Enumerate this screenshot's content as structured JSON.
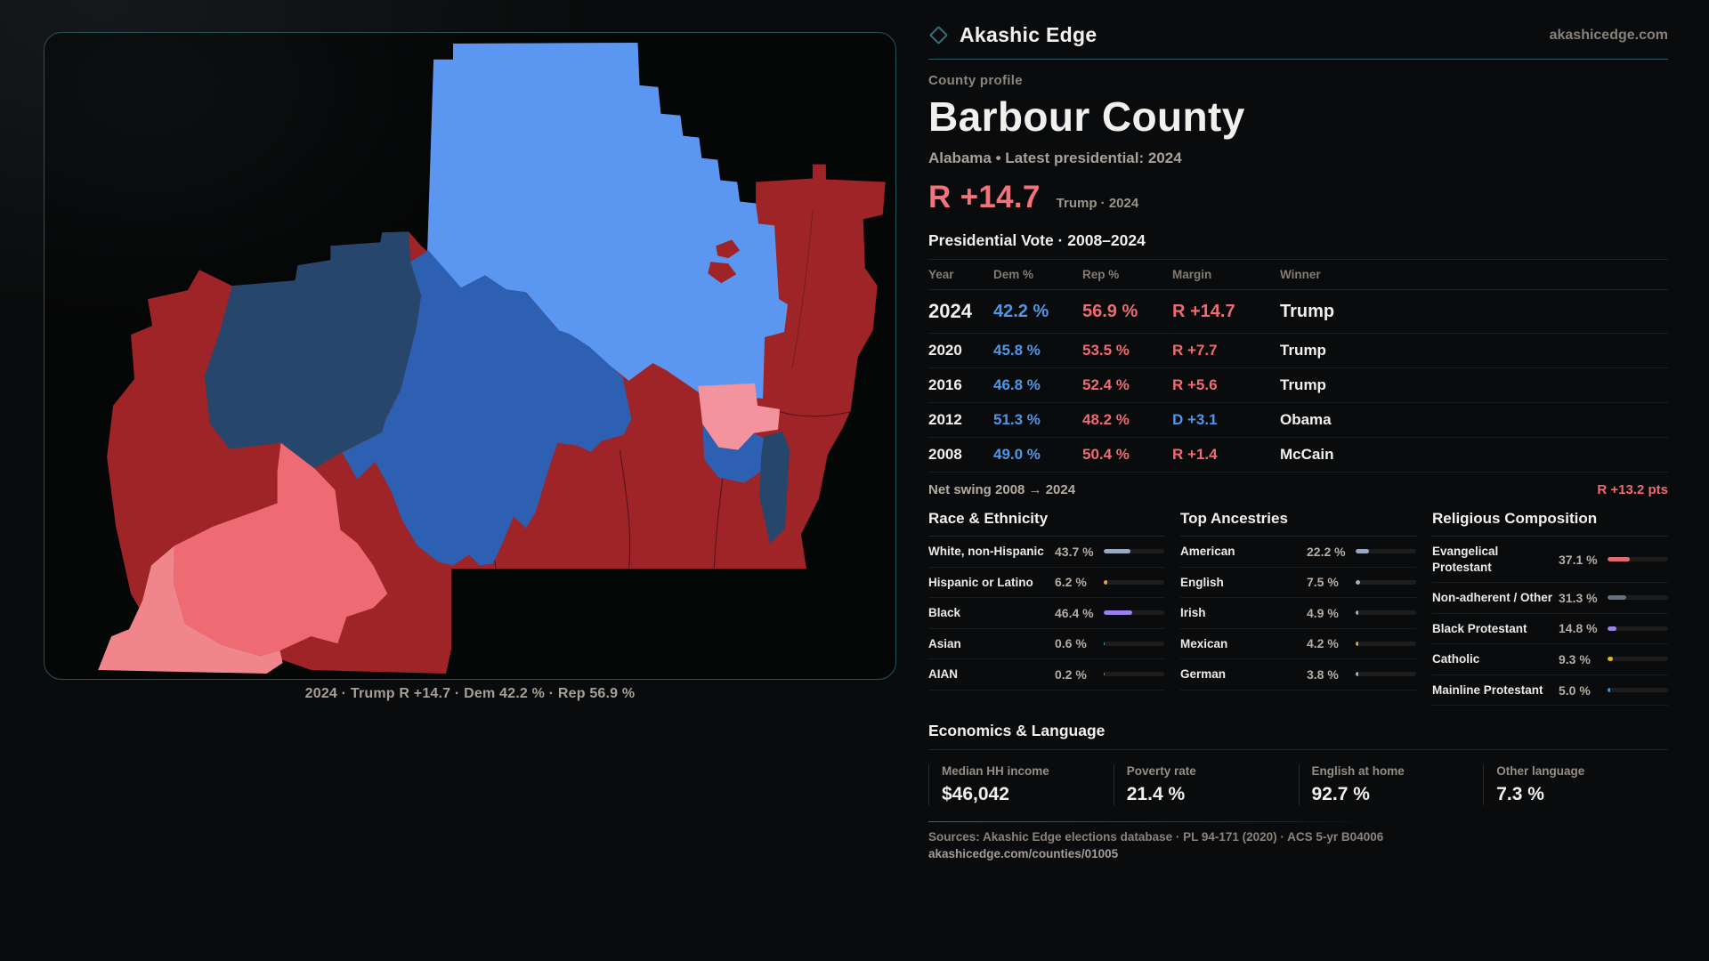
{
  "brand": {
    "name": "Akashic Edge",
    "domain": "akashicedge.com"
  },
  "header": {
    "eyebrow": "County profile",
    "title": "Barbour County",
    "subtitle": "Alabama • Latest presidential: 2024",
    "headline_margin": "R +14.7",
    "headline_note": "Trump · 2024"
  },
  "colors": {
    "dem_blue": "#4e97e8",
    "rep_red": "#ef6a72",
    "accent_red": "#f2737c",
    "white": "#f2f0ed"
  },
  "vote_table": {
    "title": "Presidential Vote · 2008–2024",
    "columns": [
      "Year",
      "Dem %",
      "Rep %",
      "Margin",
      "Winner"
    ],
    "rows": [
      {
        "year": "2024",
        "dem": "42.2 %",
        "rep": "56.9 %",
        "margin": "R +14.7",
        "margin_party": "R",
        "winner": "Trump",
        "highlight": true
      },
      {
        "year": "2020",
        "dem": "45.8 %",
        "rep": "53.5 %",
        "margin": "R +7.7",
        "margin_party": "R",
        "winner": "Trump",
        "highlight": false
      },
      {
        "year": "2016",
        "dem": "46.8 %",
        "rep": "52.4 %",
        "margin": "R +5.6",
        "margin_party": "R",
        "winner": "Trump",
        "highlight": false
      },
      {
        "year": "2012",
        "dem": "51.3 %",
        "rep": "48.2 %",
        "margin": "D +3.1",
        "margin_party": "D",
        "winner": "Obama",
        "highlight": false
      },
      {
        "year": "2008",
        "dem": "49.0 %",
        "rep": "50.4 %",
        "margin": "R +1.4",
        "margin_party": "R",
        "winner": "McCain",
        "highlight": false
      }
    ]
  },
  "net_swing": {
    "label": "Net swing 2008 → 2024",
    "value": "R +13.2 pts",
    "party": "R"
  },
  "stat_columns": [
    {
      "title": "Race & Ethnicity",
      "rows": [
        {
          "label": "White, non-Hispanic",
          "value": "43.7 %",
          "pct": 43.7,
          "color": "#92a9c9"
        },
        {
          "label": "Hispanic or Latino",
          "value": "6.2 %",
          "pct": 6.2,
          "color": "#e3a23c"
        },
        {
          "label": "Black",
          "value": "46.4 %",
          "pct": 46.4,
          "color": "#9b80ee"
        },
        {
          "label": "Asian",
          "value": "0.6 %",
          "pct": 0.6,
          "color": "#2fbf98"
        },
        {
          "label": "AIAN",
          "value": "0.2 %",
          "pct": 0.2,
          "color": "#8d857b"
        }
      ]
    },
    {
      "title": "Top Ancestries",
      "rows": [
        {
          "label": "American",
          "value": "22.2 %",
          "pct": 22.2,
          "color": "#92a9c9"
        },
        {
          "label": "English",
          "value": "7.5 %",
          "pct": 7.5,
          "color": "#9fb0c5"
        },
        {
          "label": "Irish",
          "value": "4.9 %",
          "pct": 4.9,
          "color": "#9fb0c5"
        },
        {
          "label": "Mexican",
          "value": "4.2 %",
          "pct": 4.2,
          "color": "#e3a23c"
        },
        {
          "label": "German",
          "value": "3.8 %",
          "pct": 3.8,
          "color": "#9fb0c5"
        }
      ]
    },
    {
      "title": "Religious Composition",
      "rows": [
        {
          "label": "Evangelical Protestant",
          "value": "37.1 %",
          "pct": 37.1,
          "color": "#e06a72"
        },
        {
          "label": "Non-adherent / Other",
          "value": "31.3 %",
          "pct": 31.3,
          "color": "#657084"
        },
        {
          "label": "Black Protestant",
          "value": "14.8 %",
          "pct": 14.8,
          "color": "#9b82ee"
        },
        {
          "label": "Catholic",
          "value": "9.3 %",
          "pct": 9.3,
          "color": "#e5b32e"
        },
        {
          "label": "Mainline Protestant",
          "value": "5.0 %",
          "pct": 5.0,
          "color": "#4a90e0"
        }
      ]
    }
  ],
  "economics": {
    "title": "Economics & Language",
    "cells": [
      {
        "label": "Median HH income",
        "value": "$46,042"
      },
      {
        "label": "Poverty rate",
        "value": "21.4 %"
      },
      {
        "label": "English at home",
        "value": "92.7 %"
      },
      {
        "label": "Other language",
        "value": "7.3 %"
      }
    ]
  },
  "footer": {
    "sources": "Sources: Akashic Edge elections database · PL 94-171 (2020) · ACS 5-yr B04006",
    "permalink": "akashicedge.com/counties/01005"
  },
  "map": {
    "caption": "2024 · Trump R +14.7 · Dem 42.2 % · Rep 56.9 %",
    "palette": {
      "silhouette": "#9e2428",
      "north": "#5b97f0",
      "navy": "#26476b",
      "royal": "#2d5fb2",
      "salmon": "#ee6b74",
      "salmon_light": "#f0858c",
      "pink": "#f2939d",
      "line": "rgba(10,5,8,0.5)"
    }
  }
}
